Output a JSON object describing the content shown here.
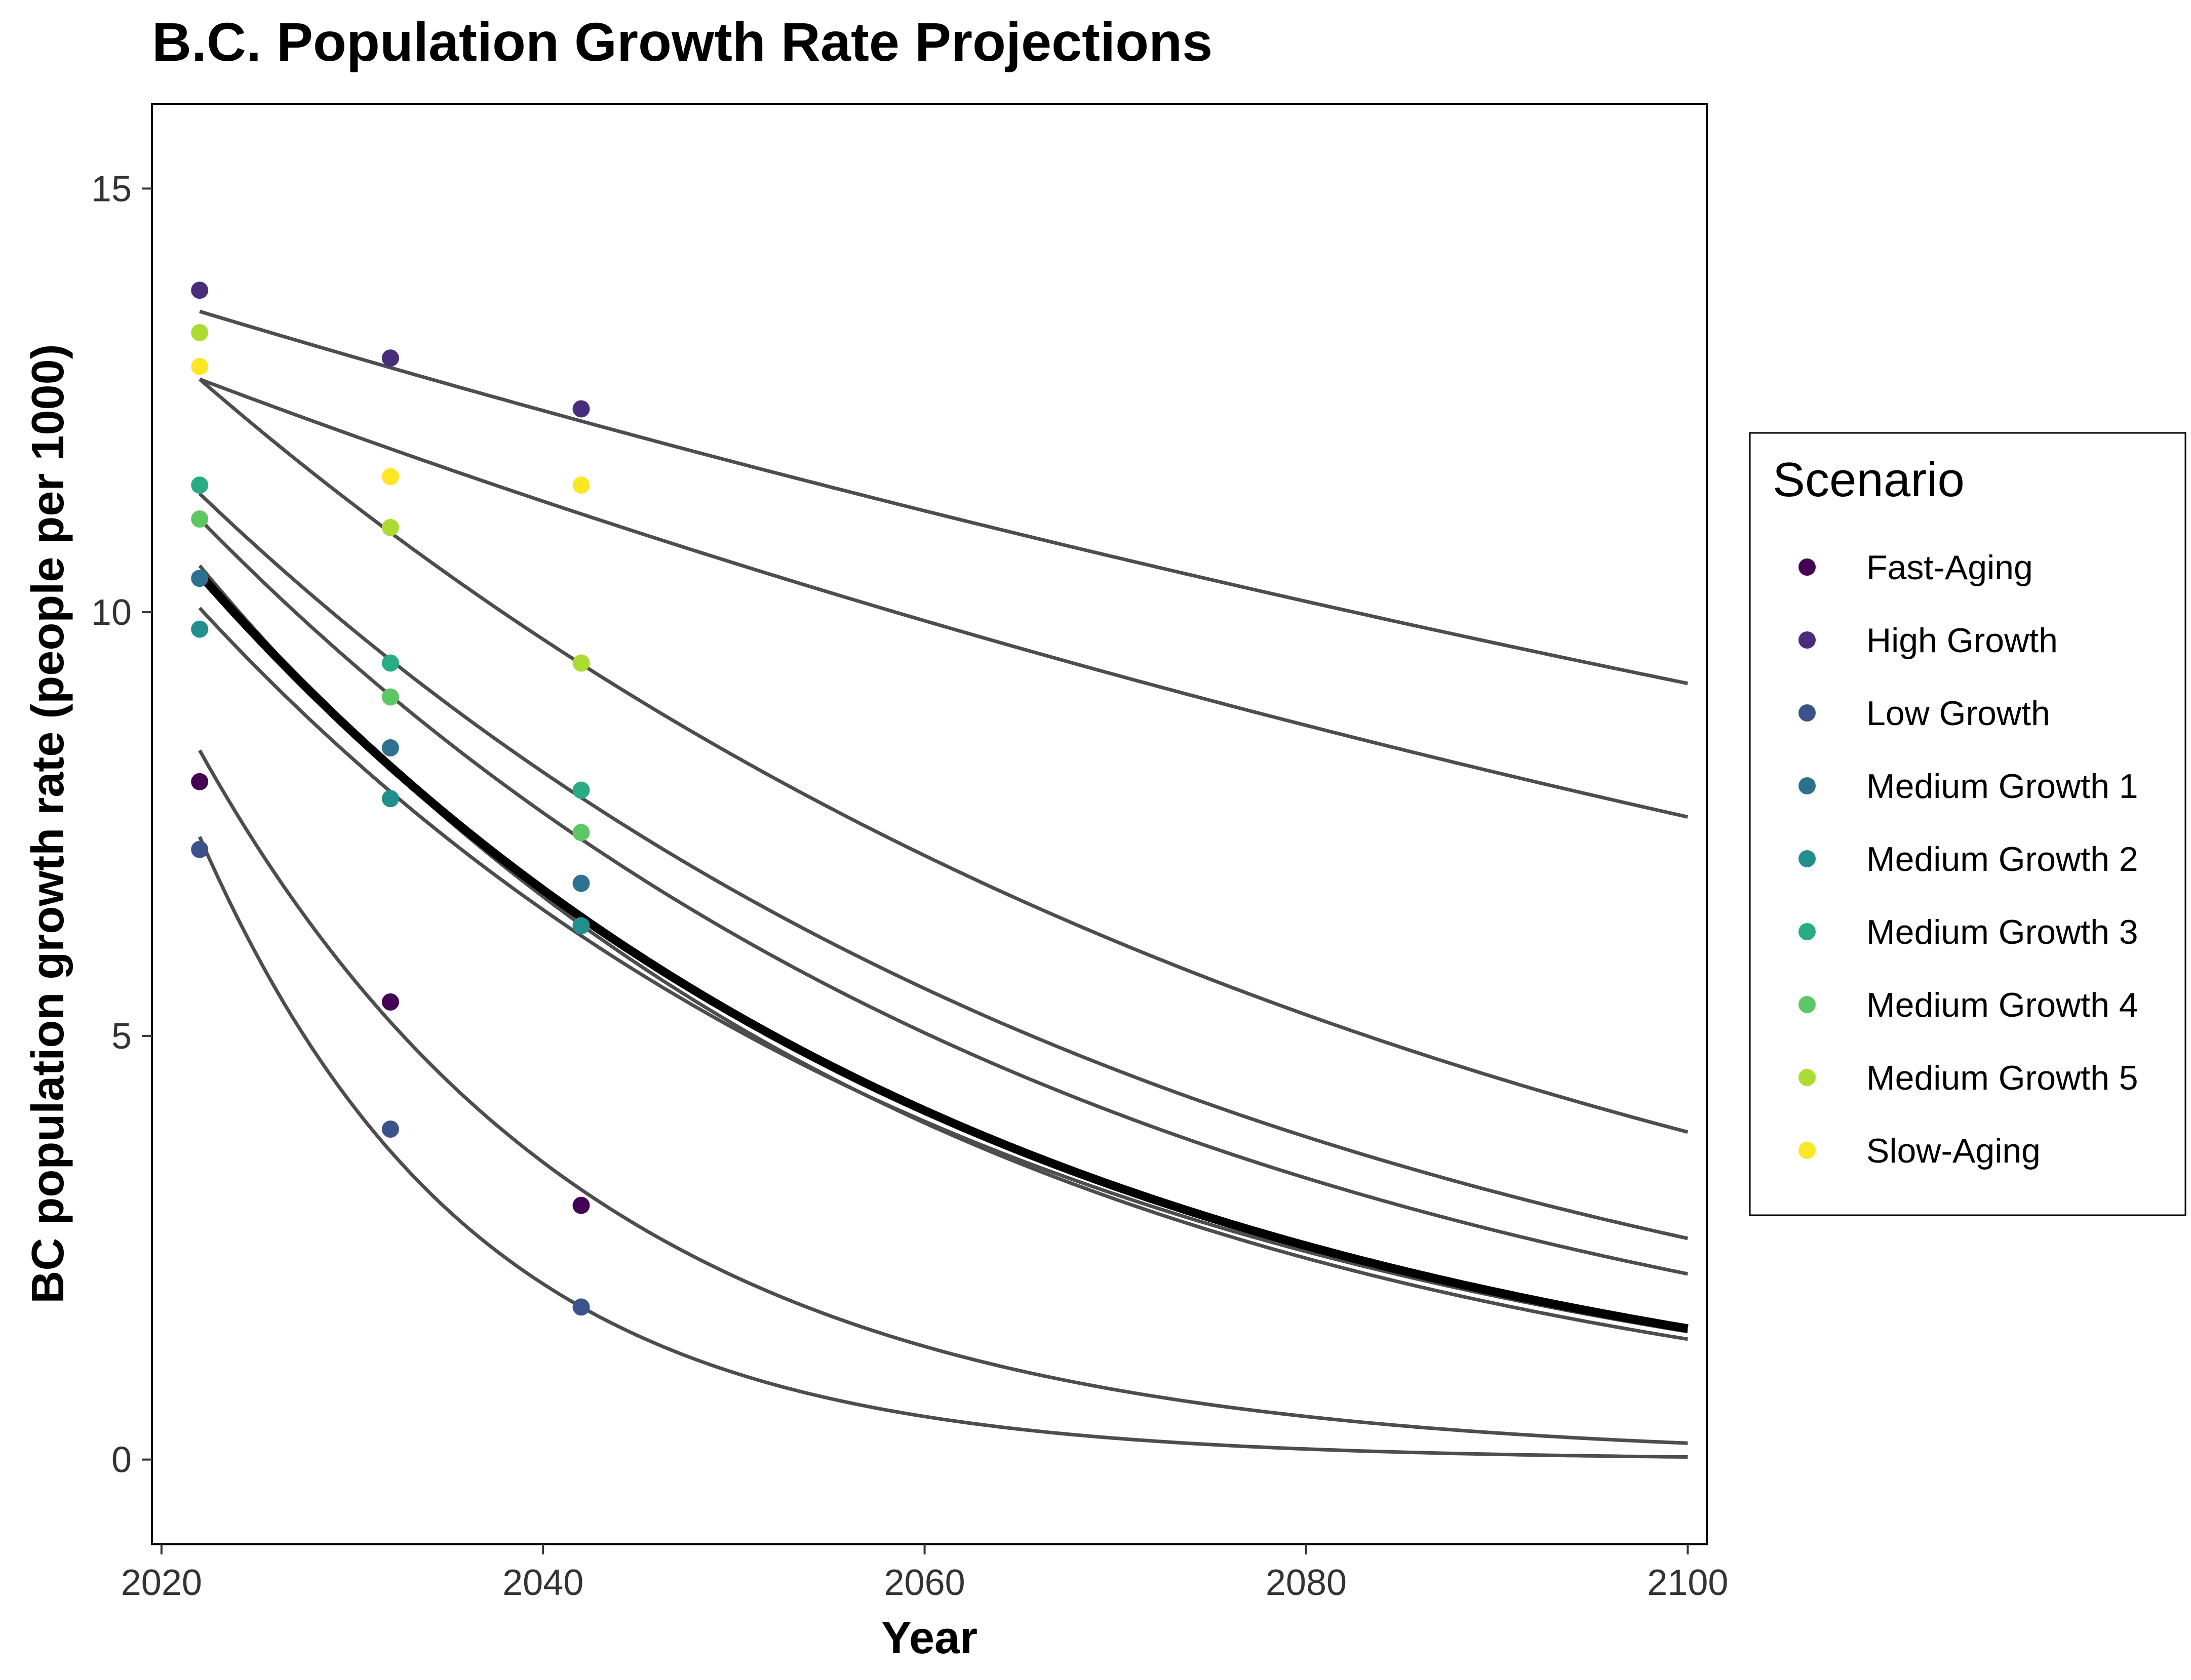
{
  "chart_data": {
    "type": "scatter",
    "title": "B.C. Population Growth Rate Projections",
    "xlabel": "Year",
    "ylabel": "BC population growth rate (people per 1000)",
    "xlim": [
      2019.5,
      2101
    ],
    "ylim": [
      -1,
      16
    ],
    "xticks": [
      2020,
      2040,
      2060,
      2080,
      2100
    ],
    "yticks": [
      0,
      5,
      10,
      15
    ],
    "grid": false,
    "legend": {
      "title": "Scenario",
      "position": "right"
    },
    "series": [
      {
        "name": "Fast-Aging",
        "color": "#440154",
        "points": [
          [
            2022,
            8.0
          ],
          [
            2032,
            5.4
          ],
          [
            2042,
            3.0
          ]
        ],
        "fit": {
          "a": 8.37,
          "k": 0.0483,
          "x0": 2022
        }
      },
      {
        "name": "High Growth",
        "color": "#472D7B",
        "points": [
          [
            2022,
            13.8
          ],
          [
            2032,
            13.0
          ],
          [
            2042,
            12.4
          ]
        ],
        "fit": {
          "a": 13.55,
          "k": 0.00502,
          "x0": 2022
        }
      },
      {
        "name": "Low Growth",
        "color": "#3B528B",
        "points": [
          [
            2022,
            7.2
          ],
          [
            2032,
            3.9
          ],
          [
            2042,
            1.8
          ]
        ],
        "fit": {
          "a": 7.35,
          "k": 0.0703,
          "x0": 2022
        }
      },
      {
        "name": "Medium Growth 1",
        "color": "#2C728E",
        "points": [
          [
            2022,
            10.4
          ],
          [
            2032,
            8.4
          ],
          [
            2042,
            6.8
          ]
        ],
        "fit": {
          "a": 10.55,
          "k": 0.0257,
          "x0": 2022
        }
      },
      {
        "name": "Medium Growth 2",
        "color": "#21908C",
        "points": [
          [
            2022,
            9.8
          ],
          [
            2032,
            7.8
          ],
          [
            2042,
            6.3
          ]
        ],
        "fit": {
          "a": 10.05,
          "k": 0.0243,
          "x0": 2022
        }
      },
      {
        "name": "Medium Growth 3",
        "color": "#27AD81",
        "points": [
          [
            2022,
            11.5
          ],
          [
            2032,
            9.4
          ],
          [
            2042,
            7.9
          ]
        ],
        "fit": {
          "a": 11.4,
          "k": 0.0189,
          "x0": 2022
        }
      },
      {
        "name": "Medium Growth 4",
        "color": "#5DC863",
        "points": [
          [
            2022,
            11.1
          ],
          [
            2032,
            9.0
          ],
          [
            2042,
            7.4
          ]
        ],
        "fit": {
          "a": 11.1,
          "k": 0.0208,
          "x0": 2022
        }
      },
      {
        "name": "Medium Growth 5",
        "color": "#AADC32",
        "points": [
          [
            2022,
            13.3
          ],
          [
            2032,
            11.0
          ],
          [
            2042,
            9.4
          ]
        ],
        "fit": {
          "a": 12.75,
          "k": 0.0153,
          "x0": 2022
        }
      },
      {
        "name": "Slow-Aging",
        "color": "#FDE725",
        "points": [
          [
            2022,
            12.9
          ],
          [
            2032,
            11.6
          ],
          [
            2042,
            11.5
          ]
        ],
        "fit": {
          "a": 12.75,
          "k": 0.00666,
          "x0": 2022
        }
      }
    ],
    "overall_fit": {
      "a": 10.45,
      "k": 0.0245,
      "x0": 2022
    }
  }
}
